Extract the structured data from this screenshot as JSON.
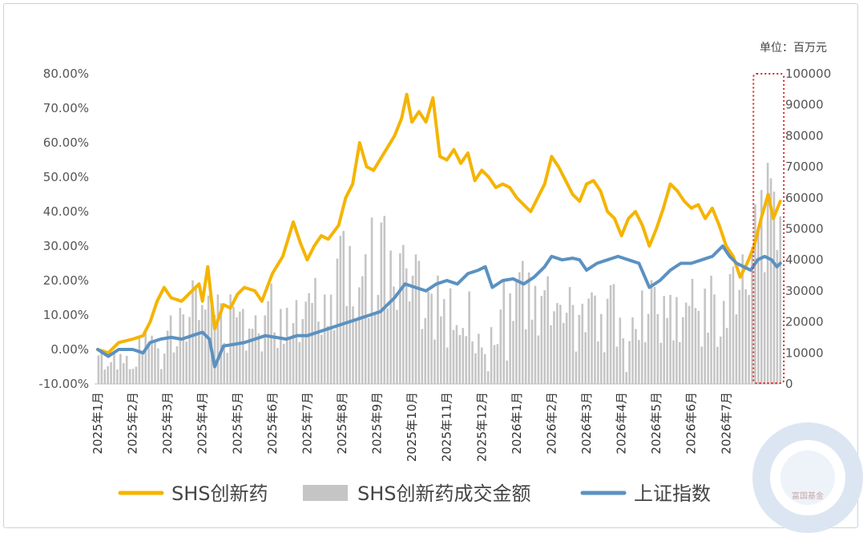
{
  "chart_data": {
    "type": "line",
    "title": "",
    "unit_label": "单位：百万元",
    "y_left": {
      "min": -10,
      "max": 80,
      "step": 10,
      "ticks": [
        "-10.00%",
        "0.00%",
        "10.00%",
        "20.00%",
        "30.00%",
        "40.00%",
        "50.00%",
        "60.00%",
        "70.00%",
        "80.00%"
      ]
    },
    "y_right": {
      "min": 0,
      "max": 100000,
      "step": 10000,
      "ticks": [
        "0",
        "10000",
        "20000",
        "30000",
        "40000",
        "50000",
        "60000",
        "70000",
        "80000",
        "90000",
        "100000"
      ]
    },
    "x_months": [
      "2025年1月",
      "2025年2月",
      "2025年3月",
      "2025年4月",
      "2025年5月",
      "2025年6月",
      "2025年7月",
      "2025年8月",
      "2025年9月",
      "2025年10月",
      "2025年11月",
      "2025年12月",
      "2026年1月",
      "2026年2月",
      "2026年3月",
      "2026年4月",
      "2026年5月",
      "2026年6月",
      "2026年7月"
    ],
    "series": [
      {
        "name": "SHS创新药",
        "type": "line",
        "axis": "left",
        "color": "#f5b400",
        "points": [
          [
            0,
            0.0
          ],
          [
            0.3,
            -1.0
          ],
          [
            0.6,
            2.0
          ],
          [
            1.0,
            3.0
          ],
          [
            1.3,
            4.0
          ],
          [
            1.5,
            8.0
          ],
          [
            1.7,
            14.0
          ],
          [
            1.9,
            18.0
          ],
          [
            2.1,
            15.0
          ],
          [
            2.4,
            14.0
          ],
          [
            2.7,
            17.0
          ],
          [
            2.9,
            19.0
          ],
          [
            3.0,
            14.0
          ],
          [
            3.15,
            24.0
          ],
          [
            3.35,
            6.0
          ],
          [
            3.6,
            13.0
          ],
          [
            3.8,
            12.0
          ],
          [
            4.0,
            16.0
          ],
          [
            4.2,
            18.0
          ],
          [
            4.5,
            17.0
          ],
          [
            4.7,
            14.0
          ],
          [
            5.0,
            22.0
          ],
          [
            5.3,
            27.0
          ],
          [
            5.6,
            37.0
          ],
          [
            5.8,
            31.0
          ],
          [
            6.0,
            26.0
          ],
          [
            6.2,
            30.0
          ],
          [
            6.4,
            33.0
          ],
          [
            6.6,
            32.0
          ],
          [
            6.9,
            36.0
          ],
          [
            7.1,
            44.0
          ],
          [
            7.3,
            48.0
          ],
          [
            7.5,
            60.0
          ],
          [
            7.7,
            53.0
          ],
          [
            7.9,
            52.0
          ],
          [
            8.2,
            57.0
          ],
          [
            8.5,
            62.0
          ],
          [
            8.7,
            67.0
          ],
          [
            8.85,
            74.0
          ],
          [
            9.0,
            66.0
          ],
          [
            9.2,
            69.0
          ],
          [
            9.4,
            66.0
          ],
          [
            9.6,
            73.0
          ],
          [
            9.8,
            56.0
          ],
          [
            10.0,
            55.0
          ],
          [
            10.2,
            58.0
          ],
          [
            10.4,
            54.0
          ],
          [
            10.6,
            57.0
          ],
          [
            10.8,
            49.0
          ],
          [
            11.0,
            52.0
          ],
          [
            11.2,
            50.0
          ],
          [
            11.4,
            47.0
          ],
          [
            11.6,
            48.0
          ],
          [
            11.8,
            47.0
          ],
          [
            12.0,
            44.0
          ],
          [
            12.2,
            42.0
          ],
          [
            12.4,
            40.0
          ],
          [
            12.6,
            44.0
          ],
          [
            12.8,
            48.0
          ],
          [
            13.0,
            56.0
          ],
          [
            13.2,
            53.0
          ],
          [
            13.4,
            49.0
          ],
          [
            13.6,
            45.0
          ],
          [
            13.8,
            43.0
          ],
          [
            14.0,
            48.0
          ],
          [
            14.2,
            49.0
          ],
          [
            14.4,
            46.0
          ],
          [
            14.6,
            40.0
          ],
          [
            14.8,
            38.0
          ],
          [
            15.0,
            33.0
          ],
          [
            15.2,
            38.0
          ],
          [
            15.4,
            40.0
          ],
          [
            15.6,
            36.0
          ],
          [
            15.8,
            30.0
          ],
          [
            16.0,
            35.0
          ],
          [
            16.2,
            41.0
          ],
          [
            16.4,
            48.0
          ],
          [
            16.6,
            46.0
          ],
          [
            16.8,
            43.0
          ],
          [
            17.0,
            41.0
          ],
          [
            17.2,
            42.0
          ],
          [
            17.4,
            38.0
          ],
          [
            17.6,
            41.0
          ],
          [
            17.8,
            36.0
          ],
          [
            18.0,
            30.0
          ],
          [
            18.2,
            27.0
          ],
          [
            18.4,
            21.0
          ],
          [
            18.6,
            25.0
          ],
          [
            18.8,
            30.0
          ],
          [
            19.0,
            38.0
          ],
          [
            19.2,
            45.0
          ],
          [
            19.35,
            38.0
          ],
          [
            19.55,
            43.0
          ]
        ]
      },
      {
        "name": "SHS创新药成交金额",
        "type": "bar",
        "axis": "right",
        "color": "#c5c5c5"
      },
      {
        "name": "上证指数",
        "type": "line",
        "axis": "left",
        "color": "#5b91c1",
        "points": [
          [
            0,
            0.0
          ],
          [
            0.3,
            -2.0
          ],
          [
            0.6,
            0.0
          ],
          [
            1.0,
            0.0
          ],
          [
            1.3,
            -1.0
          ],
          [
            1.5,
            2.0
          ],
          [
            1.8,
            3.0
          ],
          [
            2.1,
            3.5
          ],
          [
            2.4,
            3.0
          ],
          [
            2.7,
            4.0
          ],
          [
            3.0,
            5.0
          ],
          [
            3.2,
            3.0
          ],
          [
            3.35,
            -5.0
          ],
          [
            3.6,
            1.0
          ],
          [
            3.9,
            1.5
          ],
          [
            4.2,
            2.0
          ],
          [
            4.5,
            3.0
          ],
          [
            4.8,
            4.0
          ],
          [
            5.1,
            3.5
          ],
          [
            5.4,
            3.0
          ],
          [
            5.7,
            4.0
          ],
          [
            6.0,
            4.0
          ],
          [
            6.3,
            5.0
          ],
          [
            6.6,
            6.0
          ],
          [
            6.9,
            7.0
          ],
          [
            7.2,
            8.0
          ],
          [
            7.5,
            9.0
          ],
          [
            7.8,
            10.0
          ],
          [
            8.1,
            11.0
          ],
          [
            8.3,
            13.0
          ],
          [
            8.5,
            15.0
          ],
          [
            8.8,
            19.0
          ],
          [
            9.1,
            18.0
          ],
          [
            9.4,
            17.0
          ],
          [
            9.7,
            19.0
          ],
          [
            10.0,
            20.0
          ],
          [
            10.3,
            19.0
          ],
          [
            10.6,
            22.0
          ],
          [
            10.9,
            23.0
          ],
          [
            11.1,
            24.0
          ],
          [
            11.3,
            18.0
          ],
          [
            11.6,
            20.0
          ],
          [
            11.9,
            20.5
          ],
          [
            12.2,
            19.0
          ],
          [
            12.5,
            21.0
          ],
          [
            12.8,
            24.0
          ],
          [
            13.0,
            27.0
          ],
          [
            13.3,
            26.0
          ],
          [
            13.6,
            26.5
          ],
          [
            13.8,
            26.0
          ],
          [
            14.0,
            23.0
          ],
          [
            14.3,
            25.0
          ],
          [
            14.6,
            26.0
          ],
          [
            14.9,
            27.0
          ],
          [
            15.2,
            26.0
          ],
          [
            15.5,
            25.0
          ],
          [
            15.8,
            18.0
          ],
          [
            16.1,
            20.0
          ],
          [
            16.4,
            23.0
          ],
          [
            16.7,
            25.0
          ],
          [
            17.0,
            25.0
          ],
          [
            17.3,
            26.0
          ],
          [
            17.6,
            27.0
          ],
          [
            17.9,
            30.0
          ],
          [
            18.1,
            27.0
          ],
          [
            18.3,
            25.0
          ],
          [
            18.5,
            24.0
          ],
          [
            18.7,
            23.0
          ],
          [
            18.9,
            26.0
          ],
          [
            19.1,
            27.0
          ],
          [
            19.3,
            26.0
          ],
          [
            19.45,
            24.0
          ],
          [
            19.55,
            25.0
          ]
        ]
      }
    ],
    "highlight_box": {
      "from_x": 18.78,
      "to_x": 19.65,
      "color": "#e02020",
      "style": "dotted"
    },
    "legend_position": "bottom",
    "grid": false
  },
  "watermark": {
    "text": "富国基金"
  }
}
